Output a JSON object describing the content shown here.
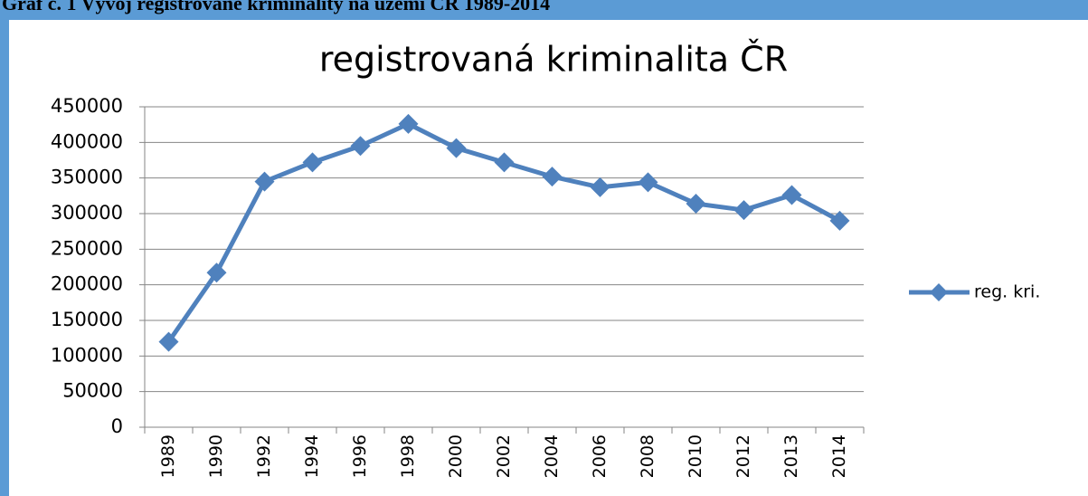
{
  "caption": "Graf č. 1 Vývoj registrované kriminality na území ČR 1989-2014",
  "chart_data": {
    "type": "line",
    "title": "registrovaná kriminalita ČR",
    "categories": [
      "1989",
      "1990",
      "1992",
      "1994",
      "1996",
      "1998",
      "2000",
      "2002",
      "2004",
      "2006",
      "2008",
      "2010",
      "2012",
      "2013",
      "2014"
    ],
    "series": [
      {
        "name": "reg. kri.",
        "color": "#4f81bd",
        "values": [
          120000,
          217000,
          345000,
          372000,
          395000,
          426000,
          392000,
          372000,
          352000,
          337000,
          344000,
          314000,
          305000,
          326000,
          290000
        ]
      }
    ],
    "ylim": [
      0,
      450000
    ],
    "yticks": [
      0,
      50000,
      100000,
      150000,
      200000,
      250000,
      300000,
      350000,
      400000,
      450000
    ],
    "grid": true,
    "legend": "right"
  }
}
